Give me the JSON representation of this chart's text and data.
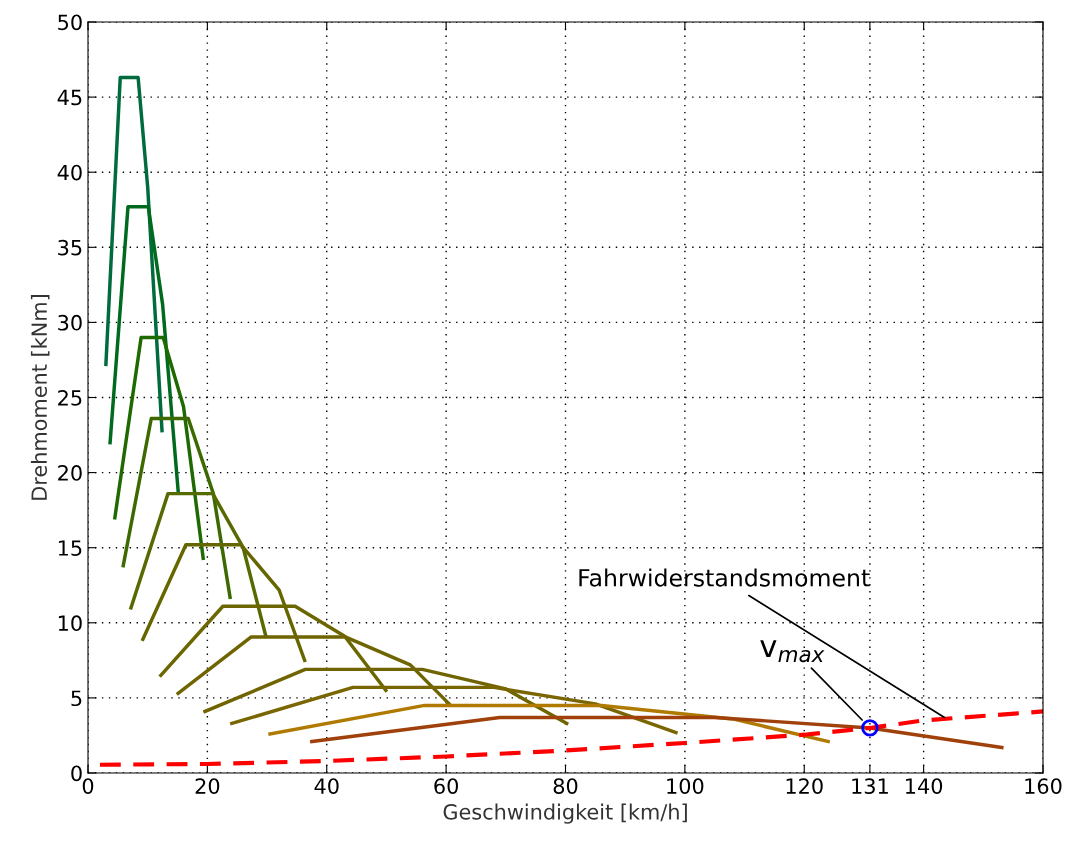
{
  "chart_data": {
    "type": "line",
    "xlabel": "Geschwindigkeit [km/h]",
    "ylabel": "Drehmoment [kNm]",
    "xlim": [
      0,
      160
    ],
    "ylim": [
      0,
      50
    ],
    "xticks": [
      0,
      20,
      40,
      60,
      80,
      100,
      120,
      131,
      140,
      160
    ],
    "yticks": [
      0,
      5,
      10,
      15,
      20,
      25,
      30,
      35,
      40,
      45,
      50
    ],
    "grid": true,
    "legend": false,
    "line_style": "solid",
    "marker": "none",
    "series": [
      {
        "color": "#006b3c",
        "x": [
          3.0,
          5.4,
          8.4,
          10.0,
          12.4
        ],
        "values": [
          27.2,
          46.3,
          46.3,
          39.0,
          22.8
        ]
      },
      {
        "color": "#006a1e",
        "x": [
          3.7,
          6.7,
          10.1,
          12.5,
          15.1
        ],
        "values": [
          22.0,
          37.7,
          37.7,
          31.2,
          18.8
        ]
      },
      {
        "color": "#1f6a00",
        "x": [
          4.5,
          8.9,
          12.6,
          16.0,
          19.3
        ],
        "values": [
          17.0,
          29.0,
          29.0,
          24.4,
          14.3
        ]
      },
      {
        "color": "#3c6a00",
        "x": [
          5.9,
          10.6,
          16.8,
          21.0,
          23.8
        ],
        "values": [
          13.8,
          23.6,
          23.6,
          18.6,
          11.7
        ]
      },
      {
        "color": "#556a00",
        "x": [
          7.2,
          13.4,
          20.9,
          26.0,
          29.8
        ],
        "values": [
          11.0,
          18.6,
          18.6,
          15.0,
          9.1
        ]
      },
      {
        "color": "#666600",
        "x": [
          9.2,
          16.4,
          25.6,
          32.0,
          36.3
        ],
        "values": [
          8.9,
          15.2,
          15.2,
          12.2,
          7.5
        ]
      },
      {
        "color": "#6b6600",
        "x": [
          12.2,
          22.6,
          34.7,
          43.0,
          49.9
        ],
        "values": [
          6.5,
          11.1,
          11.1,
          9.1,
          5.5
        ]
      },
      {
        "color": "#6e6400",
        "x": [
          15.1,
          27.3,
          43.2,
          54.0,
          60.5
        ],
        "values": [
          5.3,
          9.05,
          9.05,
          7.2,
          4.6
        ]
      },
      {
        "color": "#706400",
        "x": [
          19.6,
          36.4,
          56.0,
          70.0,
          80.2
        ],
        "values": [
          4.1,
          6.9,
          6.9,
          5.6,
          3.3
        ]
      },
      {
        "color": "#7a6600",
        "x": [
          24.1,
          44.4,
          68.0,
          85.0,
          98.5
        ],
        "values": [
          3.3,
          5.7,
          5.7,
          4.6,
          2.7
        ]
      },
      {
        "color": "#b07a00",
        "x": [
          30.5,
          56.4,
          86.0,
          108.0,
          124.0
        ],
        "values": [
          2.6,
          4.5,
          4.5,
          3.6,
          2.1
        ]
      },
      {
        "color": "#a0400a",
        "x": [
          37.5,
          69.0,
          105.0,
          131.0,
          153.1
        ],
        "values": [
          2.1,
          3.7,
          3.7,
          3.0,
          1.7
        ]
      },
      {
        "color": "#ff0000",
        "line_style": "dashed",
        "x": [
          2,
          20,
          40,
          60,
          80,
          100,
          120,
          131,
          140,
          160
        ],
        "values": [
          0.55,
          0.6,
          0.8,
          1.1,
          1.5,
          2.0,
          2.55,
          3.0,
          3.5,
          4.1
        ]
      },
      {
        "type": "scatter",
        "marker": "circle",
        "color": "#0000ff",
        "x": [
          131
        ],
        "values": [
          3.0
        ]
      }
    ],
    "annotations": [
      {
        "text": "Fahrwiderstandsmoment",
        "x": 143.5,
        "y": 3.7
      },
      {
        "text": "v$_{max}$",
        "x": 131,
        "y": 3.0
      }
    ]
  }
}
